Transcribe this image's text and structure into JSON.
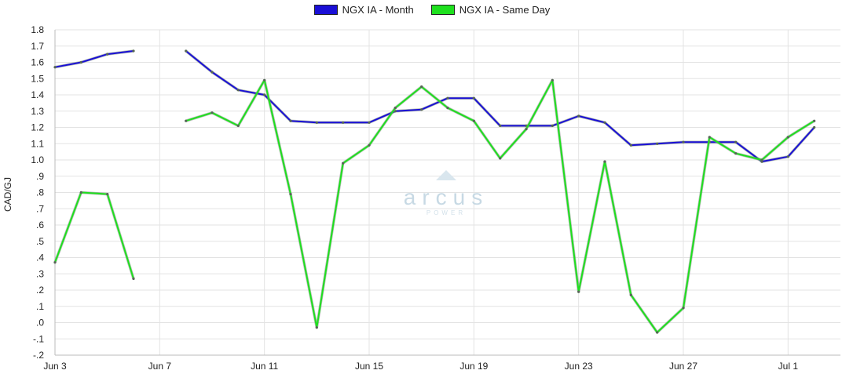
{
  "chart_data": {
    "type": "line",
    "ylabel": "CAD/GJ",
    "ylim": [
      -0.2,
      1.8
    ],
    "yticks": [
      {
        "v": 1.8,
        "label": "1.8"
      },
      {
        "v": 1.7,
        "label": "1.7"
      },
      {
        "v": 1.6,
        "label": "1.6"
      },
      {
        "v": 1.5,
        "label": "1.5"
      },
      {
        "v": 1.4,
        "label": "1.4"
      },
      {
        "v": 1.3,
        "label": "1.3"
      },
      {
        "v": 1.2,
        "label": "1.2"
      },
      {
        "v": 1.1,
        "label": "1.1"
      },
      {
        "v": 1.0,
        "label": "1.0"
      },
      {
        "v": 0.9,
        "label": ".9"
      },
      {
        "v": 0.8,
        "label": ".8"
      },
      {
        "v": 0.7,
        "label": ".7"
      },
      {
        "v": 0.6,
        "label": ".6"
      },
      {
        "v": 0.5,
        "label": ".5"
      },
      {
        "v": 0.4,
        "label": ".4"
      },
      {
        "v": 0.3,
        "label": ".3"
      },
      {
        "v": 0.2,
        "label": ".2"
      },
      {
        "v": 0.1,
        "label": ".1"
      },
      {
        "v": 0.0,
        "label": ".0"
      },
      {
        "v": -0.1,
        "label": "-.1"
      },
      {
        "v": -0.2,
        "label": "-.2"
      }
    ],
    "x_range": [
      "Jun 3",
      "Jul 3"
    ],
    "xticks": [
      {
        "date": "Jun 3",
        "label": "Jun 3"
      },
      {
        "date": "Jun 7",
        "label": "Jun 7"
      },
      {
        "date": "Jun 11",
        "label": "Jun 11"
      },
      {
        "date": "Jun 15",
        "label": "Jun 15"
      },
      {
        "date": "Jun 19",
        "label": "Jun 19"
      },
      {
        "date": "Jun 23",
        "label": "Jun 23"
      },
      {
        "date": "Jun 27",
        "label": "Jun 27"
      },
      {
        "date": "Jul 1",
        "label": "Jul 1"
      }
    ],
    "grid": true,
    "legend_position": "top-center",
    "series": [
      {
        "name": "NGX IA - Month",
        "color": "#1a0fd6",
        "points": [
          {
            "x": "Jun 3",
            "y": 1.57
          },
          {
            "x": "Jun 4",
            "y": 1.6
          },
          {
            "x": "Jun 5",
            "y": 1.65
          },
          {
            "x": "Jun 6",
            "y": 1.67
          },
          {
            "x": "Jun 8",
            "y": 1.67
          },
          {
            "x": "Jun 9",
            "y": 1.54
          },
          {
            "x": "Jun 10",
            "y": 1.43
          },
          {
            "x": "Jun 11",
            "y": 1.4
          },
          {
            "x": "Jun 12",
            "y": 1.24
          },
          {
            "x": "Jun 13",
            "y": 1.23
          },
          {
            "x": "Jun 14",
            "y": 1.23
          },
          {
            "x": "Jun 15",
            "y": 1.23
          },
          {
            "x": "Jun 16",
            "y": 1.3
          },
          {
            "x": "Jun 17",
            "y": 1.31
          },
          {
            "x": "Jun 18",
            "y": 1.38
          },
          {
            "x": "Jun 19",
            "y": 1.38
          },
          {
            "x": "Jun 20",
            "y": 1.21
          },
          {
            "x": "Jun 21",
            "y": 1.21
          },
          {
            "x": "Jun 22",
            "y": 1.21
          },
          {
            "x": "Jun 23",
            "y": 1.27
          },
          {
            "x": "Jun 24",
            "y": 1.23
          },
          {
            "x": "Jun 25",
            "y": 1.09
          },
          {
            "x": "Jun 26",
            "y": 1.1
          },
          {
            "x": "Jun 27",
            "y": 1.11
          },
          {
            "x": "Jun 28",
            "y": 1.11
          },
          {
            "x": "Jun 29",
            "y": 1.11
          },
          {
            "x": "Jun 30",
            "y": 0.99
          },
          {
            "x": "Jul 1",
            "y": 1.02
          },
          {
            "x": "Jul 2",
            "y": 1.2
          }
        ]
      },
      {
        "name": "NGX IA - Same Day",
        "color": "#1ee01e",
        "points": [
          {
            "x": "Jun 3",
            "y": 0.37
          },
          {
            "x": "Jun 4",
            "y": 0.8
          },
          {
            "x": "Jun 5",
            "y": 0.79
          },
          {
            "x": "Jun 6",
            "y": 0.27
          },
          {
            "x": "Jun 8",
            "y": 1.24
          },
          {
            "x": "Jun 9",
            "y": 1.29
          },
          {
            "x": "Jun 10",
            "y": 1.21
          },
          {
            "x": "Jun 11",
            "y": 1.49
          },
          {
            "x": "Jun 12",
            "y": 0.79
          },
          {
            "x": "Jun 13",
            "y": -0.03
          },
          {
            "x": "Jun 14",
            "y": 0.98
          },
          {
            "x": "Jun 15",
            "y": 1.09
          },
          {
            "x": "Jun 16",
            "y": 1.32
          },
          {
            "x": "Jun 17",
            "y": 1.45
          },
          {
            "x": "Jun 18",
            "y": 1.32
          },
          {
            "x": "Jun 19",
            "y": 1.24
          },
          {
            "x": "Jun 20",
            "y": 1.01
          },
          {
            "x": "Jun 21",
            "y": 1.19
          },
          {
            "x": "Jun 22",
            "y": 1.49
          },
          {
            "x": "Jun 23",
            "y": 0.19
          },
          {
            "x": "Jun 24",
            "y": 0.99
          },
          {
            "x": "Jun 25",
            "y": 0.17
          },
          {
            "x": "Jun 26",
            "y": -0.06
          },
          {
            "x": "Jun 27",
            "y": 0.09
          },
          {
            "x": "Jun 28",
            "y": 1.14
          },
          {
            "x": "Jun 29",
            "y": 1.04
          },
          {
            "x": "Jun 30",
            "y": 1.0
          },
          {
            "x": "Jul 1",
            "y": 1.14
          },
          {
            "x": "Jul 2",
            "y": 1.24
          }
        ]
      }
    ],
    "watermark": {
      "text": "arcus",
      "subtext": "POWER"
    }
  }
}
